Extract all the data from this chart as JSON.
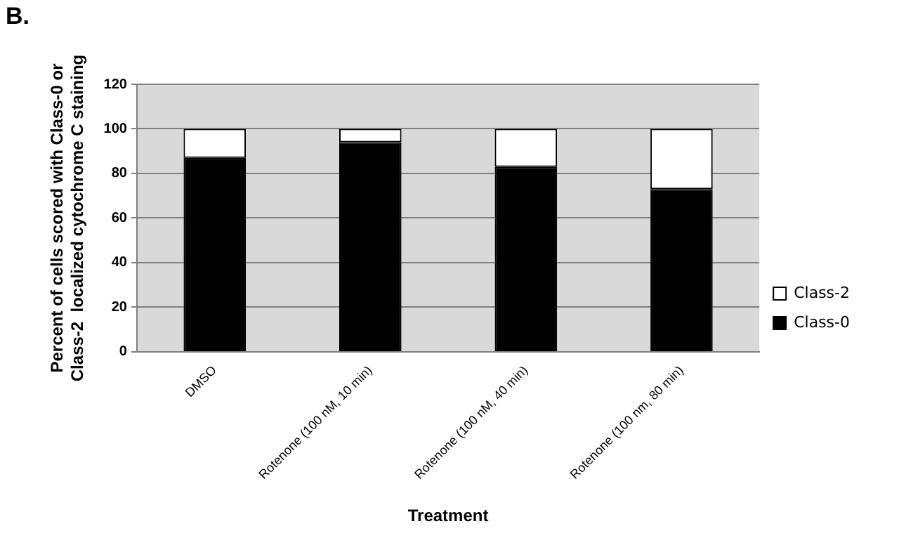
{
  "chart_data": {
    "type": "bar",
    "stacked": true,
    "annotations": [
      "B."
    ],
    "ylabel": "Percent of cells scored with Class-0 or\nClass-2  localized cytochrome C staining",
    "xlabel": "Treatment",
    "categories": [
      "DMSO",
      "Rotenone (100 nM, 10 min)",
      "Rotenone (100 nM, 40 min)",
      "Rotenone (100 nm, 80 min)"
    ],
    "series": [
      {
        "name": "Class-0",
        "color": "#000000",
        "values": [
          87,
          94,
          83,
          73
        ]
      },
      {
        "name": "Class-2",
        "color": "#ffffff",
        "values": [
          13,
          6,
          17,
          27
        ]
      }
    ],
    "ylim": [
      0,
      120
    ],
    "yticks": [
      0,
      20,
      40,
      60,
      80,
      100,
      120
    ],
    "grid": "y",
    "legend": "right"
  }
}
